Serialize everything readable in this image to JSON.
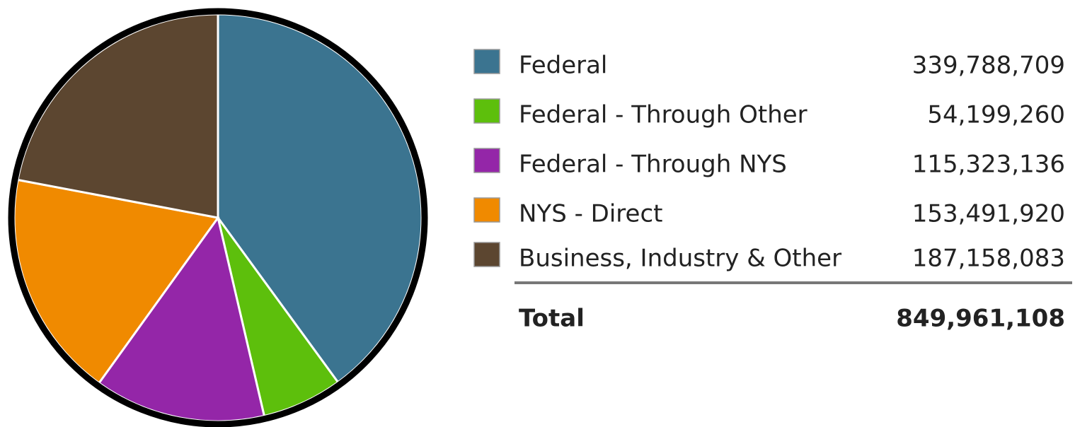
{
  "chart_data": {
    "type": "pie",
    "categories": [
      "Federal",
      "Federal - Through Other",
      "Federal - Through NYS",
      "NYS - Direct",
      "Business, Industry & Other"
    ],
    "values": [
      339788709,
      54199260,
      115323136,
      153491920,
      187158083
    ],
    "value_labels": [
      "339,788,709",
      "54,199,260",
      "115,323,136",
      "153,491,920",
      "187,158,083"
    ],
    "colors": [
      "#3b7490",
      "#5dbf0c",
      "#9426a8",
      "#f08a00",
      "#5c4630"
    ],
    "total_label": "Total",
    "total": {
      "value": 849961108,
      "label": "849,961,108"
    }
  }
}
